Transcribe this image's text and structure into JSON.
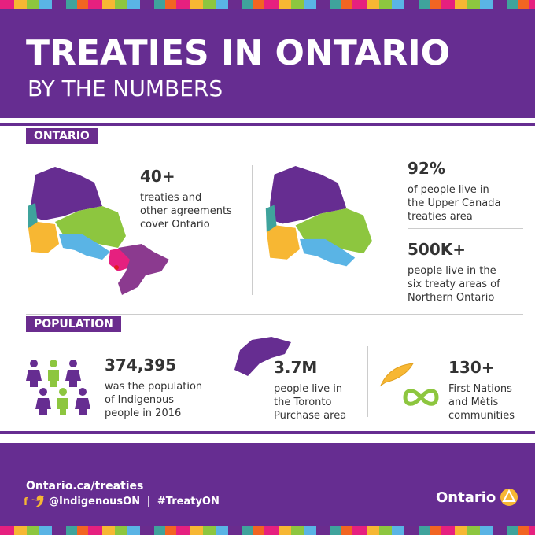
{
  "header": {
    "title": "TREATIES IN ONTARIO",
    "subtitle": "BY THE NUMBERS"
  },
  "sections": [
    {
      "label": "ONTARIO",
      "stats": [
        {
          "figure": "40+",
          "lines": [
            "treaties and",
            "other agreements",
            "cover Ontario"
          ]
        },
        {
          "figure": "92%",
          "lines": [
            "of people live in",
            "the Upper Canada",
            "treaties area"
          ]
        },
        {
          "figure": "500K+",
          "lines": [
            "people live in the",
            "six treaty areas of",
            "Northern Ontario"
          ]
        }
      ]
    },
    {
      "label": "POPULATION",
      "stats": [
        {
          "figure": "374,395",
          "lines": [
            "was the population",
            "of Indigenous",
            "people in 2016"
          ]
        },
        {
          "figure": "3.7M",
          "lines": [
            "people live in",
            "the Toronto",
            "Purchase area"
          ]
        },
        {
          "figure": "130+",
          "lines": [
            "First Nations",
            "and Mètis",
            "communities"
          ]
        }
      ]
    }
  ],
  "footer": {
    "url": "Ontario.ca/treaties",
    "handles": [
      "@IndigenousON",
      "#TreatyON"
    ],
    "separator": "|",
    "logo": "Ontario"
  }
}
